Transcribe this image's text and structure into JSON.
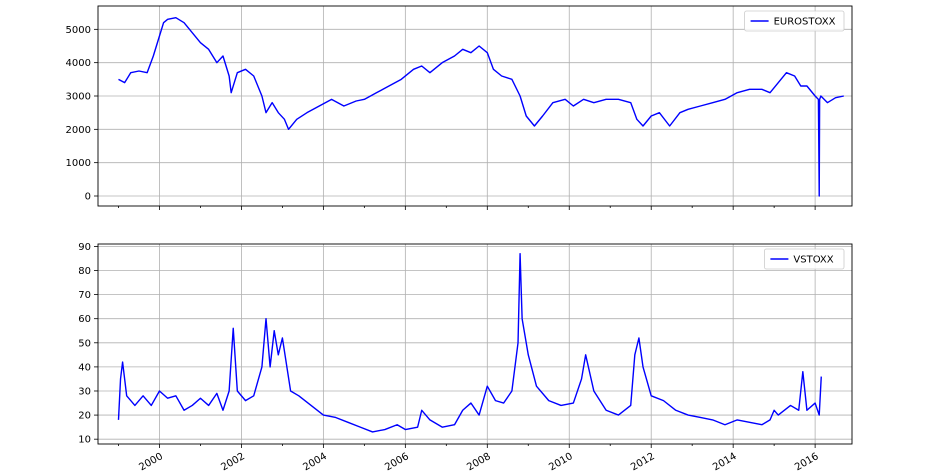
{
  "chart_data": [
    {
      "type": "line",
      "title": "",
      "xlabel": "",
      "ylabel": "",
      "xlim": [
        1998.5,
        2016.9
      ],
      "ylim": [
        -300,
        5700
      ],
      "yticks": [
        0,
        1000,
        2000,
        3000,
        4000,
        5000
      ],
      "grid": true,
      "legend_position": "top-right",
      "series": [
        {
          "name": "EUROSTOXX",
          "color": "#0000ff",
          "x": [
            1999.0,
            1999.15,
            1999.3,
            1999.5,
            1999.7,
            1999.85,
            2000.0,
            2000.1,
            2000.2,
            2000.4,
            2000.6,
            2000.8,
            2001.0,
            2001.2,
            2001.4,
            2001.55,
            2001.7,
            2001.75,
            2001.9,
            2002.1,
            2002.3,
            2002.5,
            2002.6,
            2002.75,
            2002.9,
            2003.05,
            2003.15,
            2003.35,
            2003.6,
            2003.9,
            2004.2,
            2004.5,
            2004.8,
            2005.0,
            2005.3,
            2005.6,
            2005.9,
            2006.2,
            2006.4,
            2006.6,
            2006.9,
            2007.2,
            2007.4,
            2007.6,
            2007.8,
            2008.0,
            2008.15,
            2008.35,
            2008.6,
            2008.8,
            2008.95,
            2009.15,
            2009.35,
            2009.6,
            2009.9,
            2010.1,
            2010.35,
            2010.6,
            2010.9,
            2011.2,
            2011.5,
            2011.65,
            2011.8,
            2012.0,
            2012.2,
            2012.45,
            2012.7,
            2012.9,
            2013.2,
            2013.5,
            2013.8,
            2014.1,
            2014.4,
            2014.7,
            2014.9,
            2015.1,
            2015.3,
            2015.5,
            2015.65,
            2015.8,
            2016.0,
            2016.08,
            2016.1,
            2016.11,
            2016.14,
            2016.3,
            2016.5,
            2016.7
          ],
          "y": [
            3500,
            3400,
            3700,
            3750,
            3700,
            4200,
            4800,
            5200,
            5300,
            5350,
            5200,
            4900,
            4600,
            4400,
            4000,
            4200,
            3600,
            3100,
            3700,
            3800,
            3600,
            3000,
            2500,
            2800,
            2500,
            2300,
            2000,
            2300,
            2500,
            2700,
            2900,
            2700,
            2850,
            2900,
            3100,
            3300,
            3500,
            3800,
            3900,
            3700,
            4000,
            4200,
            4400,
            4300,
            4500,
            4300,
            3800,
            3600,
            3500,
            3000,
            2400,
            2100,
            2400,
            2800,
            2900,
            2700,
            2900,
            2800,
            2900,
            2900,
            2800,
            2300,
            2100,
            2400,
            2500,
            2100,
            2500,
            2600,
            2700,
            2800,
            2900,
            3100,
            3200,
            3200,
            3100,
            3400,
            3700,
            3600,
            3300,
            3300,
            3000,
            2900,
            0,
            2900,
            3000,
            2800,
            2950,
            3000
          ]
        }
      ]
    },
    {
      "type": "line",
      "title": "",
      "xlabel": "",
      "ylabel": "",
      "xlim": [
        1998.5,
        2016.9
      ],
      "ylim": [
        8,
        91
      ],
      "yticks": [
        10,
        20,
        30,
        40,
        50,
        60,
        70,
        80,
        90
      ],
      "xticks": [
        "2000",
        "2002",
        "2004",
        "2006",
        "2008",
        "2010",
        "2012",
        "2014",
        "2016"
      ],
      "grid": true,
      "legend_position": "top-right",
      "series": [
        {
          "name": "VSTOXX",
          "color": "#0000ff",
          "x": [
            1999.0,
            1999.05,
            1999.1,
            1999.2,
            1999.4,
            1999.6,
            1999.8,
            2000.0,
            2000.2,
            2000.4,
            2000.6,
            2000.8,
            2001.0,
            2001.2,
            2001.4,
            2001.55,
            2001.7,
            2001.8,
            2001.9,
            2002.1,
            2002.3,
            2002.5,
            2002.6,
            2002.7,
            2002.8,
            2002.9,
            2003.0,
            2003.2,
            2003.4,
            2003.7,
            2004.0,
            2004.3,
            2004.6,
            2004.9,
            2005.2,
            2005.5,
            2005.8,
            2006.0,
            2006.3,
            2006.4,
            2006.6,
            2006.9,
            2007.2,
            2007.4,
            2007.6,
            2007.8,
            2008.0,
            2008.2,
            2008.4,
            2008.6,
            2008.75,
            2008.8,
            2008.85,
            2009.0,
            2009.2,
            2009.5,
            2009.8,
            2010.1,
            2010.3,
            2010.4,
            2010.6,
            2010.9,
            2011.2,
            2011.5,
            2011.6,
            2011.7,
            2011.8,
            2012.0,
            2012.3,
            2012.6,
            2012.9,
            2013.2,
            2013.5,
            2013.8,
            2014.1,
            2014.4,
            2014.7,
            2014.9,
            2015.0,
            2015.1,
            2015.4,
            2015.6,
            2015.7,
            2015.8,
            2016.0,
            2016.1,
            2016.15
          ],
          "y": [
            18,
            35,
            42,
            28,
            24,
            28,
            24,
            30,
            27,
            28,
            22,
            24,
            27,
            24,
            29,
            22,
            30,
            56,
            30,
            26,
            28,
            40,
            60,
            40,
            55,
            45,
            52,
            30,
            28,
            24,
            20,
            19,
            17,
            15,
            13,
            14,
            16,
            14,
            15,
            22,
            18,
            15,
            16,
            22,
            25,
            20,
            32,
            26,
            25,
            30,
            50,
            87,
            60,
            45,
            32,
            26,
            24,
            25,
            35,
            45,
            30,
            22,
            20,
            24,
            45,
            52,
            40,
            28,
            26,
            22,
            20,
            19,
            18,
            16,
            18,
            17,
            16,
            18,
            22,
            20,
            24,
            22,
            38,
            22,
            25,
            20,
            36
          ]
        }
      ]
    }
  ]
}
